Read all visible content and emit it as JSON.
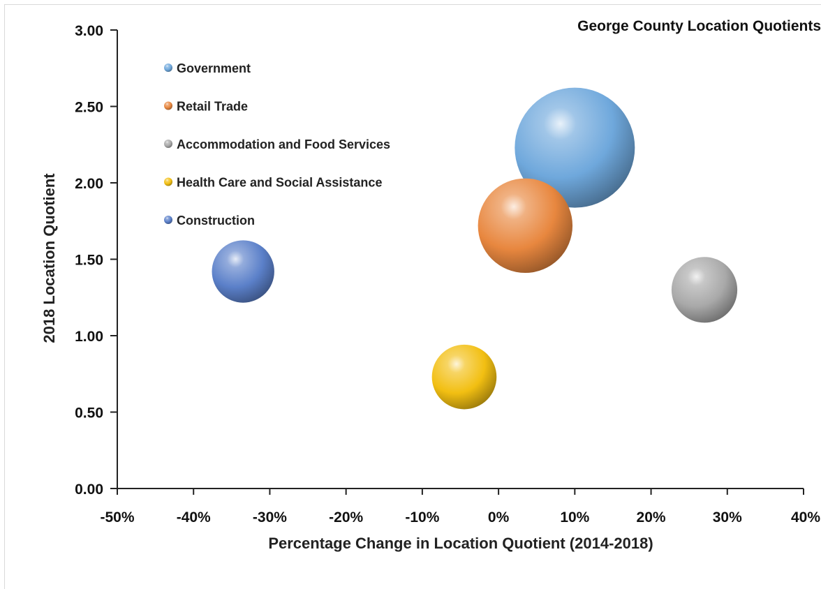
{
  "chart_data": {
    "type": "bubble",
    "title": "George County Location Quotients",
    "xlabel": "Percentage Change in Location Quotient (2014-2018)",
    "ylabel": "2018 Location Quotient",
    "xlim": [
      -50,
      40
    ],
    "ylim": [
      0,
      3
    ],
    "x_ticks": [
      "-50%",
      "-40%",
      "-30%",
      "-20%",
      "-10%",
      "0%",
      "10%",
      "20%",
      "30%",
      "40%"
    ],
    "y_ticks": [
      "0.00",
      "0.50",
      "1.00",
      "1.50",
      "2.00",
      "2.50",
      "3.00"
    ],
    "x_tick_values": [
      -50,
      -40,
      -30,
      -20,
      -10,
      0,
      10,
      20,
      30,
      40
    ],
    "y_tick_values": [
      0,
      0.5,
      1,
      1.5,
      2,
      2.5,
      3
    ],
    "legend_position": "top-left",
    "grid": false,
    "series": [
      {
        "name": "Government",
        "x": 10,
        "y": 2.23,
        "size": 1.0,
        "color": "#6fa8dc"
      },
      {
        "name": "Retail Trade",
        "x": 3.5,
        "y": 1.72,
        "size": 0.62,
        "color": "#e8873f"
      },
      {
        "name": "Accommodation and Food Services",
        "x": 27,
        "y": 1.3,
        "size": 0.3,
        "color": "#a9a9a9"
      },
      {
        "name": "Health Care and Social Assistance",
        "x": -4.5,
        "y": 0.73,
        "size": 0.29,
        "color": "#f2bf12"
      },
      {
        "name": "Construction",
        "x": -33.5,
        "y": 1.42,
        "size": 0.27,
        "color": "#5b80c9"
      }
    ]
  }
}
